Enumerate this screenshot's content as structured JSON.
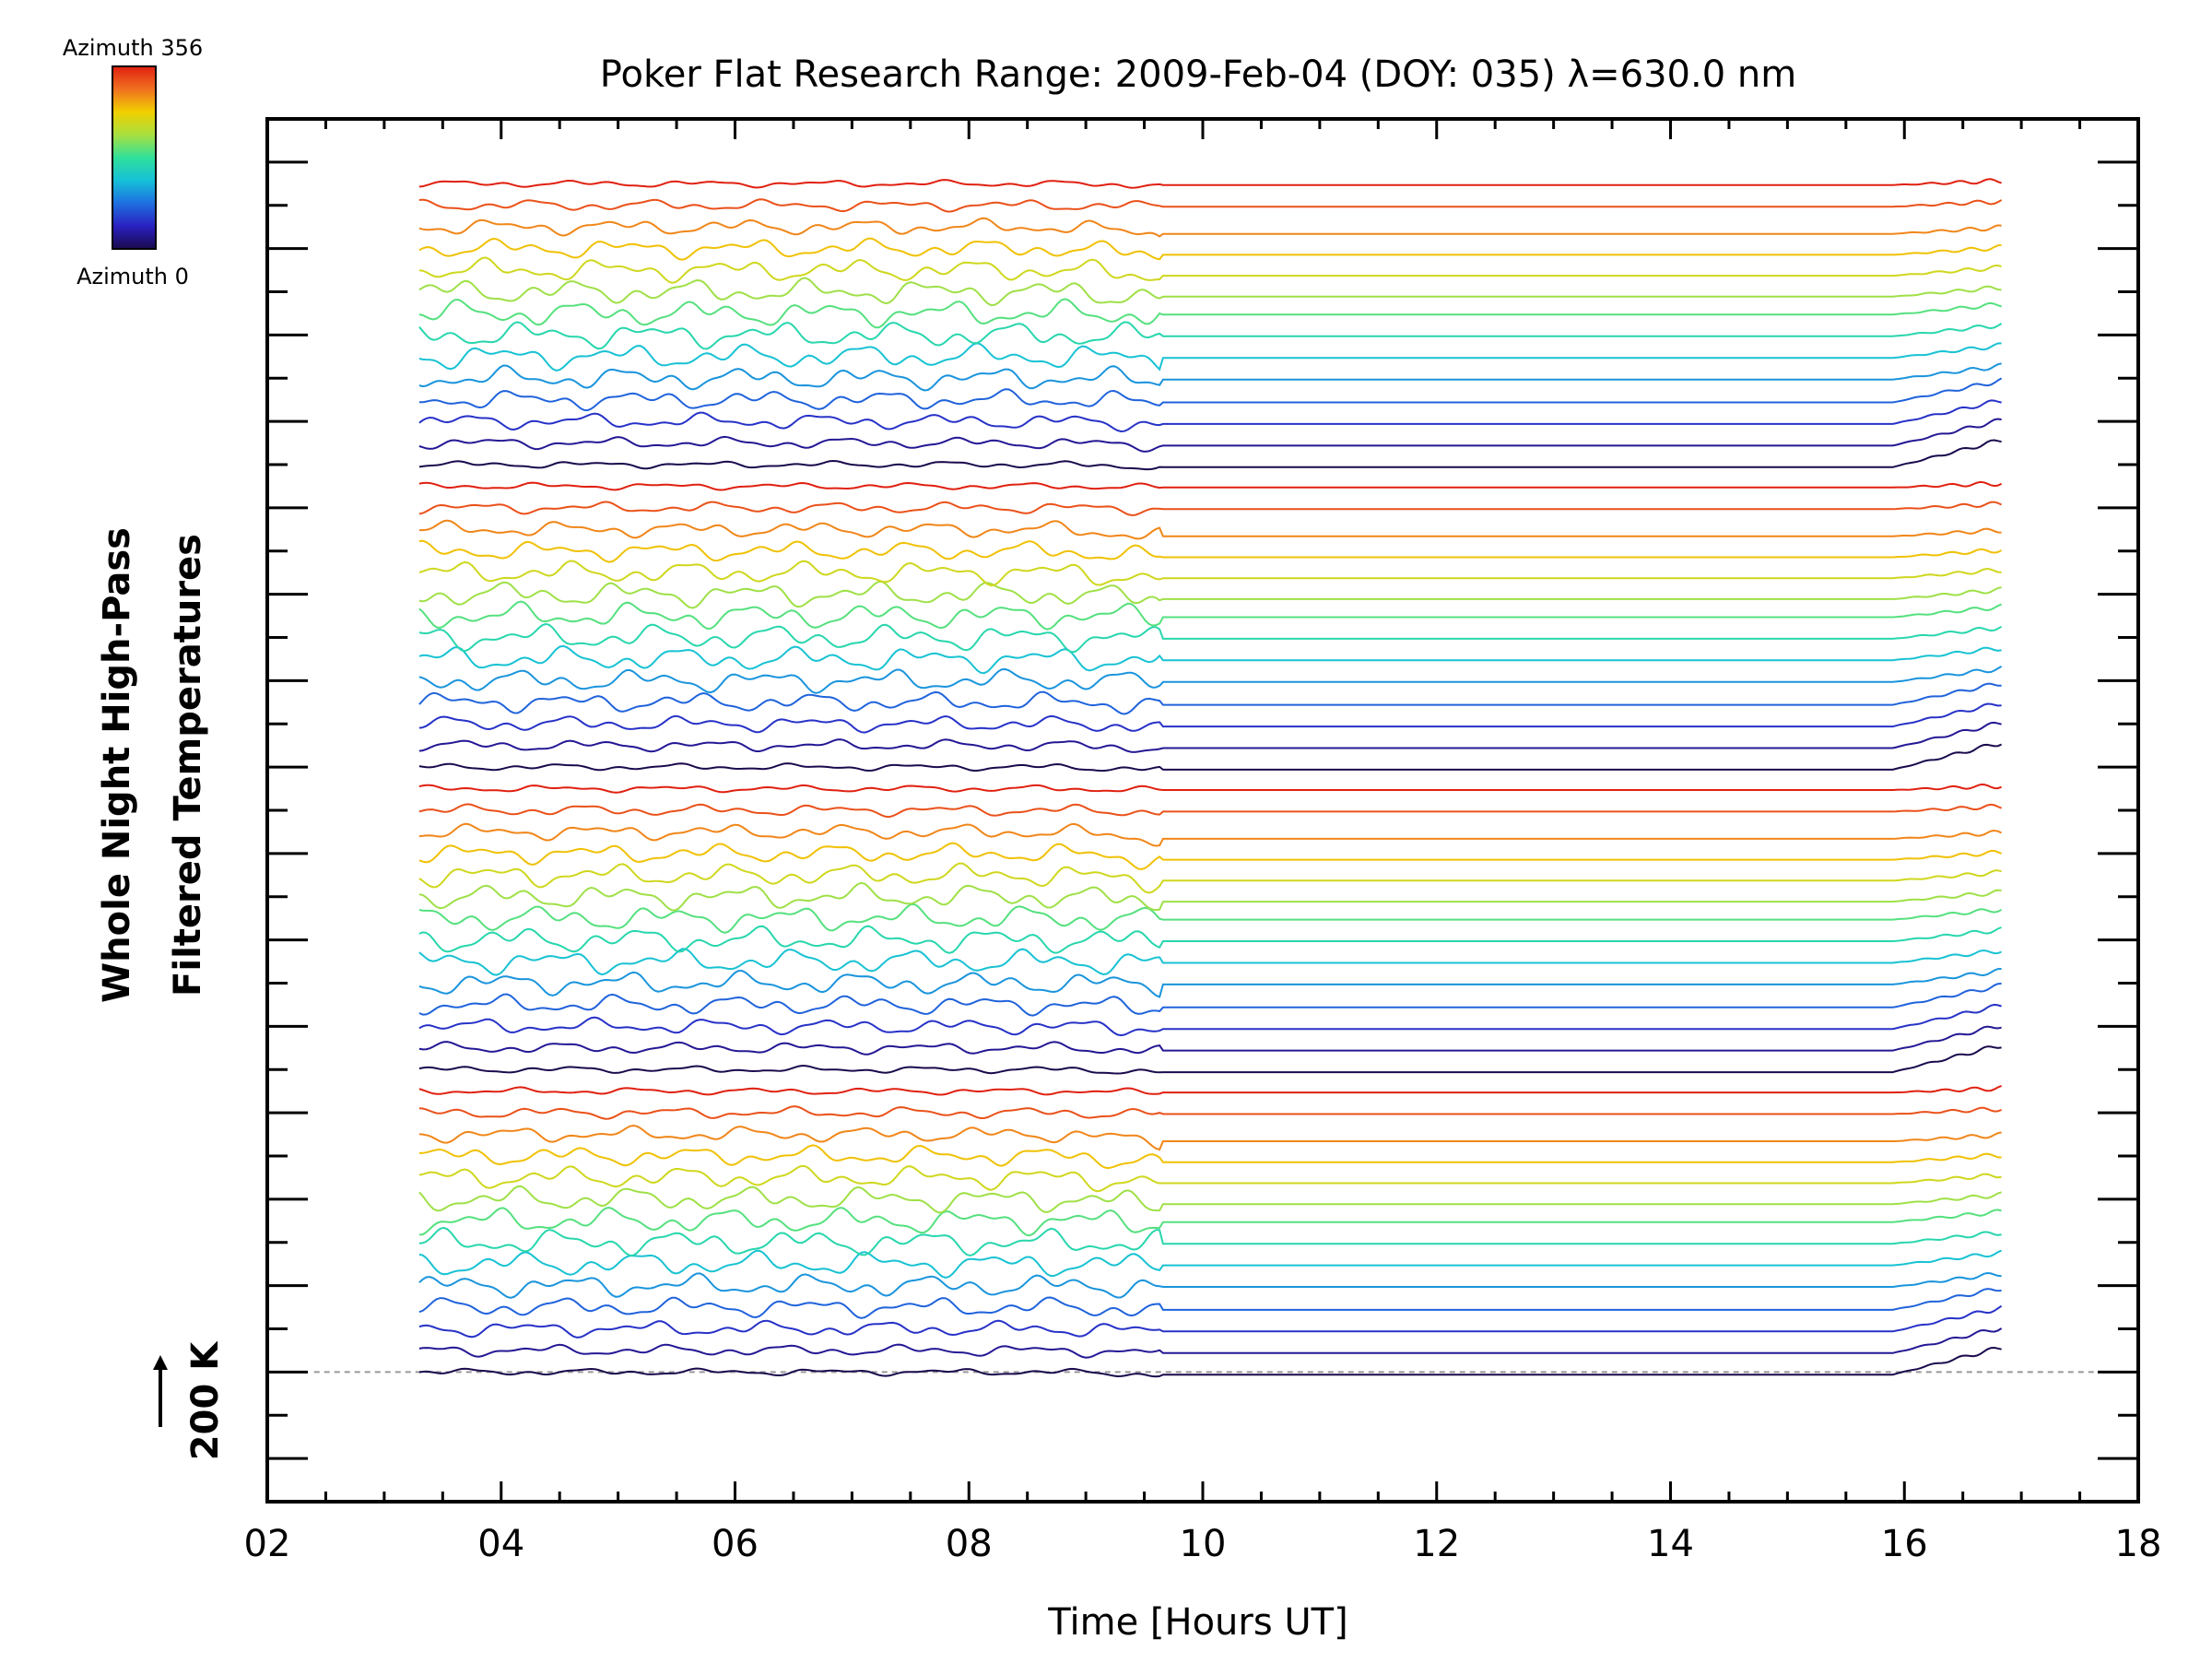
{
  "chart_data": {
    "type": "line",
    "title": "Poker Flat Research Range: 2009-Feb-04 (DOY: 035) λ=630.0 nm",
    "xlabel": "Time [Hours UT]",
    "ylabel_line1": "Whole Night High-Pass",
    "ylabel_line2": "Filtered Temperatures",
    "scale_label": "200 K",
    "xlim": [
      2,
      18
    ],
    "xticks": [
      "02",
      "04",
      "06",
      "08",
      "10",
      "12",
      "14",
      "16",
      "18"
    ],
    "xtick_values": [
      2,
      4,
      6,
      8,
      10,
      12,
      14,
      16,
      18
    ],
    "y_offset_per_trace_K": 50,
    "ylim_K": [
      -300,
      2900
    ],
    "ytick_step_K": 200,
    "grid": false,
    "baseline_dashed": true,
    "data_start_hour": 3.3,
    "data_end_hour": 16.85,
    "gap_start_hour": 9.65,
    "gap_end_hour": 15.9,
    "n_traces": 56,
    "azimuth_cycle": 14,
    "colorbar": {
      "top_label": "Azimuth 356",
      "bottom_label": "Azimuth 0",
      "colormap": "rainbow",
      "colors": [
        "#1a0a4d",
        "#2a20c0",
        "#1e6fe0",
        "#16c0d8",
        "#30e09a",
        "#a8e040",
        "#f0d000",
        "#f07020",
        "#e02010"
      ]
    }
  }
}
